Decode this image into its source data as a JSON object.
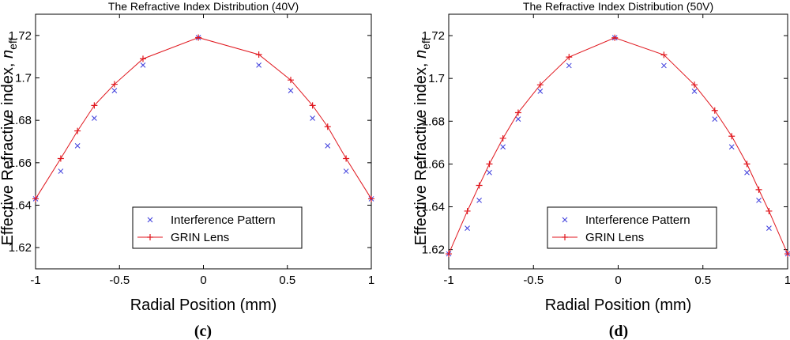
{
  "chart_data": [
    {
      "type": "line",
      "panel": "(c)",
      "title": "The Refractive Index Distribution (40V)",
      "xlabel": "Radial Position (mm)",
      "ylabel": "Effective Refractive index, ",
      "ylabel_symbol": "n",
      "ylabel_subscript": "eff",
      "xlim": [
        -1,
        1
      ],
      "ylim": [
        1.61,
        1.73
      ],
      "xticks": [
        -1,
        -0.5,
        0,
        0.5,
        1
      ],
      "xtick_labels": [
        "-1",
        "-0.5",
        "0",
        "0.5",
        "1"
      ],
      "yticks": [
        1.62,
        1.64,
        1.66,
        1.68,
        1.7,
        1.72
      ],
      "ytick_labels": [
        "1.62",
        "1.64",
        "1.66",
        "1.68",
        "1.7",
        "1.72"
      ],
      "legend_position": "bottom-center",
      "series": [
        {
          "name": "Interference Pattern",
          "marker": "x",
          "color": "#3b3bdc",
          "x": [
            -1,
            -0.85,
            -0.75,
            -0.65,
            -0.53,
            -0.36,
            -0.03,
            0.33,
            0.52,
            0.65,
            0.74,
            0.85,
            1
          ],
          "y": [
            1.643,
            1.656,
            1.668,
            1.681,
            1.694,
            1.706,
            1.719,
            1.706,
            1.694,
            1.681,
            1.668,
            1.656,
            1.643
          ]
        },
        {
          "name": "GRIN Lens",
          "marker": "+",
          "line": true,
          "color": "#e0161d",
          "x": [
            -1,
            -0.85,
            -0.75,
            -0.65,
            -0.53,
            -0.36,
            -0.03,
            0.33,
            0.52,
            0.65,
            0.74,
            0.85,
            1
          ],
          "y": [
            1.643,
            1.662,
            1.675,
            1.687,
            1.697,
            1.709,
            1.719,
            1.711,
            1.699,
            1.687,
            1.677,
            1.662,
            1.643
          ]
        }
      ]
    },
    {
      "type": "line",
      "panel": "(d)",
      "title": "The Refractive Index Distribution (50V)",
      "xlabel": "Radial Position (mm)",
      "ylabel": "Effective Refractive index, ",
      "ylabel_symbol": "n",
      "ylabel_subscript": "eff",
      "xlim": [
        -1,
        1
      ],
      "ylim": [
        1.611,
        1.73
      ],
      "xticks": [
        -1,
        -0.5,
        0,
        0.5,
        1
      ],
      "xtick_labels": [
        "-1",
        "-0.5",
        "0",
        "0.5",
        "1"
      ],
      "yticks": [
        1.62,
        1.64,
        1.66,
        1.68,
        1.7,
        1.72
      ],
      "ytick_labels": [
        "1.62",
        "1.64",
        "1.66",
        "1.68",
        "1.7",
        "1.72"
      ],
      "legend_position": "bottom-center",
      "series": [
        {
          "name": "Interference Pattern",
          "marker": "x",
          "color": "#3b3bdc",
          "x": [
            -1,
            -0.89,
            -0.82,
            -0.76,
            -0.68,
            -0.59,
            -0.46,
            -0.29,
            -0.02,
            0.27,
            0.45,
            0.57,
            0.67,
            0.76,
            0.83,
            0.89,
            1
          ],
          "y": [
            1.618,
            1.63,
            1.643,
            1.656,
            1.668,
            1.681,
            1.694,
            1.706,
            1.719,
            1.706,
            1.694,
            1.681,
            1.668,
            1.656,
            1.643,
            1.63,
            1.618
          ]
        },
        {
          "name": "GRIN Lens",
          "marker": "+",
          "line": true,
          "color": "#e0161d",
          "x": [
            -1,
            -0.89,
            -0.82,
            -0.76,
            -0.68,
            -0.59,
            -0.46,
            -0.29,
            -0.02,
            0.27,
            0.45,
            0.57,
            0.67,
            0.76,
            0.83,
            0.89,
            1
          ],
          "y": [
            1.618,
            1.638,
            1.65,
            1.66,
            1.672,
            1.684,
            1.697,
            1.71,
            1.719,
            1.711,
            1.697,
            1.685,
            1.673,
            1.66,
            1.648,
            1.638,
            1.618
          ]
        }
      ]
    }
  ]
}
